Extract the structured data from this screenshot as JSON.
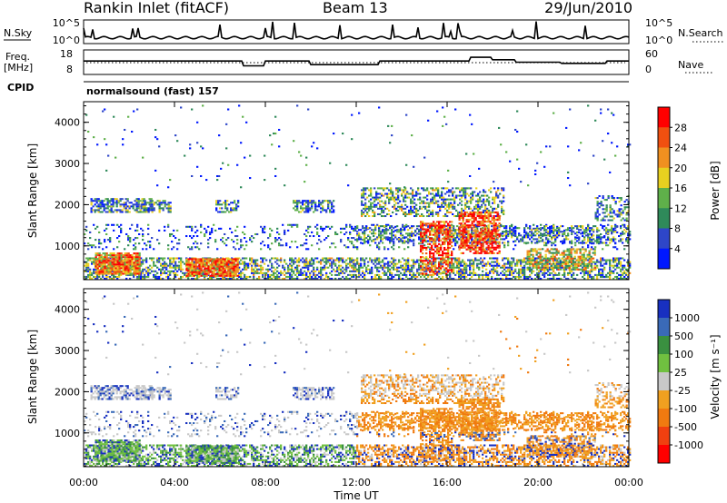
{
  "header": {
    "station": "Rankin Inlet (fitACF)",
    "beam": "Beam 13",
    "date": "29/Jun/2010",
    "program": "normalsound (fast) 157"
  },
  "status_panels": {
    "nsky_label": "N.Sky",
    "nsky_top": "10^5",
    "nsky_bottom": "10^0",
    "nsearch_label": "N.Search",
    "nsearch_top": "10^5",
    "nsearch_bottom": "10^0",
    "freq_label_1": "Freq.",
    "freq_label_2": "[MHz]",
    "freq_top": "18",
    "freq_bottom": "8",
    "nave_label": "Nave",
    "nave_top": "60",
    "nave_bottom": "0",
    "cpid_label": "CPID"
  },
  "chart_data": [
    {
      "type": "heatmap",
      "quantity": "power",
      "ylabel": "Slant Range [km]",
      "ylim": [
        180,
        4500
      ],
      "yticks": [
        "1000",
        "2000",
        "3000",
        "4000"
      ],
      "colorbar_label": "Power [dB]",
      "colorbar_ticks": [
        "4",
        "8",
        "12",
        "16",
        "20",
        "24",
        "28"
      ],
      "colorbar_range": [
        0,
        32
      ],
      "colorbar_colors": [
        "#0018ff",
        "#2e46c8",
        "#2f8a5a",
        "#5fb04a",
        "#e8d020",
        "#f09020",
        "#f05010",
        "#ff0000"
      ]
    },
    {
      "type": "heatmap",
      "quantity": "velocity",
      "ylabel": "Slant Range [km]",
      "xlabel": "Time UT",
      "ylim": [
        180,
        4500
      ],
      "yticks": [
        "1000",
        "2000",
        "3000",
        "4000"
      ],
      "xticks": [
        "00:00",
        "04:00",
        "08:00",
        "12:00",
        "16:00",
        "20:00",
        "00:00"
      ],
      "colorbar_label": "Velocity [m s⁻¹]",
      "colorbar_ticks": [
        "1000",
        "500",
        "100",
        "25",
        "-25",
        "-100",
        "-500",
        "-1000"
      ],
      "colorbar_colors": [
        "#1830c0",
        "#3a6ab8",
        "#3a9040",
        "#70c040",
        "#c8c8c8",
        "#f0a020",
        "#f07a10",
        "#f04010",
        "#ff0000"
      ]
    }
  ]
}
